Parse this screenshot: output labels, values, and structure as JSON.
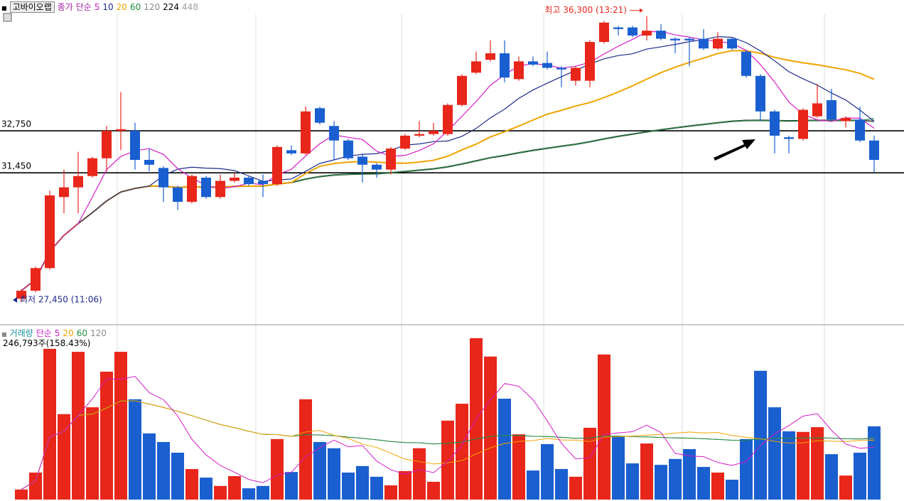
{
  "header": {
    "stock": "고바이오랩"
  },
  "chart_data": [
    {
      "type": "candlestick",
      "ma_label": "종가 단순",
      "ma_periods": [
        5,
        10,
        20,
        60,
        120,
        224,
        448
      ],
      "ma_colors": [
        "#d41cc8",
        "#1c2a8c",
        "#f0a400",
        "#1e8a3c",
        "#8c8c8c",
        "#000000",
        "#a0a0a0"
      ],
      "up_color": "#e8261a",
      "down_color": "#1a5fd0",
      "ylim": [
        26790,
        36800
      ],
      "levels": [
        {
          "value": 32750,
          "label": "32,750"
        },
        {
          "value": 31450,
          "label": "31,450"
        }
      ],
      "high_note": "최고 36,300 (13:21)",
      "low_note": "최저 27,450 (11:06)",
      "open": [
        27550,
        27800,
        28500,
        30700,
        31000,
        31350,
        31900,
        32750,
        32750,
        31850,
        31600,
        31000,
        30550,
        31300,
        30700,
        31200,
        31300,
        31200,
        31100,
        32150,
        32050,
        33450,
        32900,
        32450,
        31950,
        31700,
        31550,
        32200,
        32600,
        32650,
        32650,
        33550,
        34550,
        34950,
        35150,
        34350,
        34900,
        34850,
        34700,
        34300,
        34300,
        35500,
        35950,
        35950,
        35700,
        35850,
        35600,
        35600,
        35600,
        35300,
        35600,
        35200,
        34450,
        33350,
        32550,
        32500,
        33200,
        33700,
        33050,
        33100,
        32450
      ],
      "high": [
        27850,
        28550,
        30900,
        31550,
        32100,
        31950,
        32900,
        33950,
        33000,
        32200,
        31650,
        31050,
        31400,
        31350,
        31400,
        31450,
        31350,
        31400,
        32300,
        32300,
        33500,
        33500,
        33050,
        32500,
        32050,
        31750,
        32250,
        32650,
        33050,
        33000,
        33600,
        34500,
        35200,
        35550,
        35550,
        35050,
        35050,
        35200,
        34750,
        34750,
        35550,
        36150,
        36000,
        36000,
        36300,
        36050,
        35650,
        35650,
        35900,
        35800,
        35650,
        35250,
        34500,
        33400,
        32600,
        33450,
        34200,
        34050,
        33200,
        33500,
        32600
      ],
      "low": [
        27450,
        27750,
        28450,
        30200,
        30200,
        31300,
        31500,
        32150,
        31550,
        31500,
        30550,
        30300,
        30500,
        30650,
        30650,
        31150,
        31050,
        30700,
        31050,
        32000,
        32000,
        32950,
        31850,
        31850,
        31150,
        31300,
        31400,
        32150,
        32550,
        32600,
        32600,
        33500,
        34500,
        34900,
        34250,
        34300,
        34750,
        34650,
        34100,
        34150,
        34100,
        35450,
        35700,
        35650,
        35550,
        35550,
        35150,
        34750,
        35250,
        35250,
        35250,
        34400,
        33050,
        32050,
        32050,
        32450,
        33150,
        33050,
        32850,
        32400,
        31450
      ],
      "close": [
        27800,
        28500,
        30750,
        31000,
        31350,
        31900,
        32750,
        32800,
        31850,
        31700,
        31000,
        30550,
        31350,
        30700,
        31200,
        31300,
        31100,
        31100,
        32250,
        32050,
        33350,
        33000,
        32450,
        31900,
        31700,
        31550,
        32200,
        32600,
        32650,
        32750,
        33550,
        34450,
        34900,
        35150,
        34400,
        34900,
        34800,
        34700,
        34650,
        34700,
        35500,
        36100,
        35900,
        35700,
        35850,
        35600,
        35550,
        35550,
        35300,
        35600,
        35300,
        34450,
        33350,
        32600,
        32500,
        33400,
        33600,
        33100,
        33150,
        32450,
        31850
      ]
    },
    {
      "type": "bar",
      "title": "거래량",
      "ma_label": "단순",
      "ma_periods": [
        5,
        20,
        60,
        120
      ],
      "ma_colors": [
        "#d41cc8",
        "#f0a400",
        "#1e8a3c",
        "#8c8c8c"
      ],
      "current": "246,793주(158.43%)",
      "ylim": [
        0,
        546000
      ],
      "values": [
        34000,
        91000,
        508000,
        288000,
        498000,
        311000,
        431000,
        498000,
        338000,
        223000,
        194000,
        158000,
        103000,
        74000,
        46000,
        79000,
        38000,
        46000,
        204000,
        93000,
        338000,
        194000,
        173000,
        91000,
        113000,
        77000,
        48000,
        96000,
        173000,
        60000,
        266000,
        323000,
        544000,
        482000,
        340000,
        220000,
        98000,
        187000,
        103000,
        77000,
        242000,
        489000,
        213000,
        122000,
        189000,
        117000,
        137000,
        170000,
        110000,
        91000,
        67000,
        204000,
        434000,
        311000,
        230000,
        228000,
        244000,
        153000,
        81000,
        158000,
        246793
      ]
    }
  ]
}
